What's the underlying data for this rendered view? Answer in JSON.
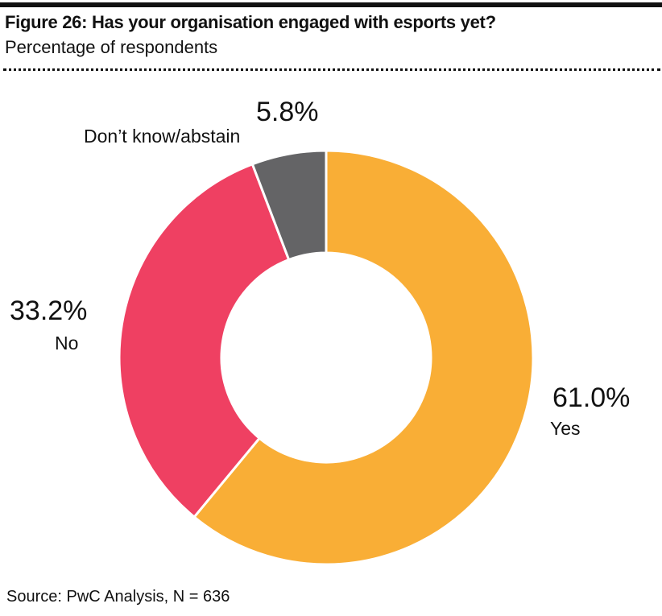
{
  "title": "Figure 26: Has your organisation engaged with esports yet?",
  "subtitle": "Percentage of respondents",
  "source": "Source: PwC Analysis, N = 636",
  "chart_data": {
    "type": "pie",
    "variant": "donut",
    "start": "12 o'clock, clockwise",
    "slices": [
      {
        "label": "Yes",
        "value": 61.0,
        "value_label": "61.0%",
        "color": "#F9AE36"
      },
      {
        "label": "No",
        "value": 33.2,
        "value_label": "33.2%",
        "color": "#EF4062"
      },
      {
        "label": "Don’t know/abstain",
        "value": 5.8,
        "value_label": "5.8%",
        "color": "#646466"
      }
    ]
  }
}
